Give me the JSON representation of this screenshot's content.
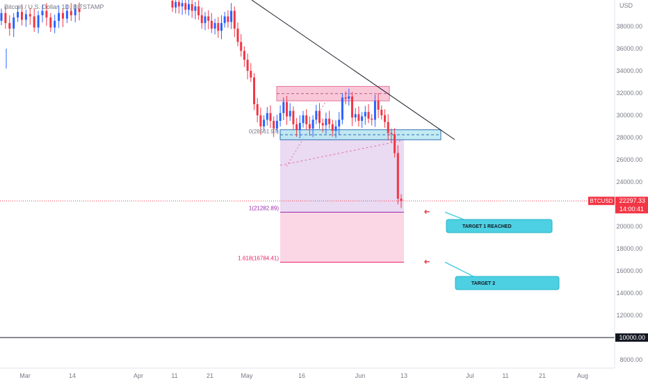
{
  "title": "Bitcoin / U.S. Dollar, 1D, BITSTAMP",
  "currency_label": "USD",
  "colors": {
    "up": "#2962ff",
    "down": "#f23645",
    "trendline": "#131722",
    "purple_zone": "#e6d3f0",
    "pink_zone": "#fbd3e2",
    "resistance_box": "#f5b6cc",
    "support_box": "#b8e8f2",
    "callout": "#4dd0e1",
    "price_tag": "#f23645"
  },
  "price_tag": {
    "symbol": "BTCUSD",
    "price": "22297.33",
    "countdown": "14:00:41"
  },
  "level_10000": "10000.00",
  "fib_labels": {
    "zero": "0(28561.97)",
    "one": "1(21282.89)",
    "ext": "1.618(16784.41)"
  },
  "callouts": [
    {
      "text": "TARGET 1 REACHED",
      "price": 20000
    },
    {
      "text": "TARGET 2",
      "price": 15000
    }
  ],
  "chart_data": {
    "type": "candlestick",
    "title": "Bitcoin / U.S. Dollar, 1D, BITSTAMP",
    "ylabel": "USD",
    "y_scale": "linear",
    "ylim": [
      7500,
      40500
    ],
    "y_ticks": [
      "38000.00",
      "36000.00",
      "34000.00",
      "32000.00",
      "30000.00",
      "28000.00",
      "26000.00",
      "24000.00",
      "22000.00",
      "20000.00",
      "18000.00",
      "16000.00",
      "14000.00",
      "12000.00",
      "10000.00",
      "8000.00"
    ],
    "x_ticks": [
      "Mar",
      "14",
      "Apr",
      "11",
      "21",
      "May",
      "16",
      "Jun",
      "13",
      "Jul",
      "11",
      "21",
      "Aug"
    ],
    "grid": false,
    "current_price": 22297.33,
    "horizontal_level": 10000,
    "fib_levels": [
      {
        "ratio": "0",
        "price": 28561.97
      },
      {
        "ratio": "1",
        "price": 21282.89
      },
      {
        "ratio": "1.618",
        "price": 16784.41
      }
    ],
    "zones": [
      {
        "name": "resistance",
        "low": 31300,
        "high": 32600
      },
      {
        "name": "support",
        "low": 27800,
        "high": 28700
      }
    ],
    "candles_open_close": [
      [
        38500,
        39200
      ],
      [
        39200,
        38300
      ],
      [
        38300,
        37800
      ],
      [
        37800,
        38800
      ],
      [
        38800,
        39300
      ],
      [
        39300,
        38600
      ],
      [
        38600,
        39100
      ],
      [
        39100,
        38900
      ],
      [
        38900,
        37900
      ],
      [
        37900,
        39000
      ],
      [
        39000,
        39400
      ],
      [
        39400,
        38800
      ],
      [
        38800,
        37900
      ],
      [
        37900,
        38500
      ],
      [
        38500,
        39200
      ],
      [
        39200,
        38700
      ],
      [
        38700,
        39400
      ],
      [
        39400,
        39000
      ],
      [
        39000,
        39600
      ],
      [
        39600,
        39300
      ],
      [
        40300,
        39700
      ],
      [
        39700,
        40200
      ],
      [
        40200,
        39800
      ],
      [
        39800,
        40100
      ],
      [
        40100,
        39500
      ],
      [
        39500,
        40000
      ],
      [
        40000,
        39400
      ],
      [
        39400,
        39800
      ],
      [
        39800,
        39000
      ],
      [
        39000,
        38300
      ],
      [
        38300,
        38900
      ],
      [
        38900,
        38500
      ],
      [
        38500,
        37800
      ],
      [
        37800,
        38300
      ],
      [
        38300,
        37600
      ],
      [
        37600,
        38300
      ],
      [
        38300,
        38900
      ],
      [
        38900,
        38400
      ],
      [
        38400,
        39400
      ],
      [
        39400,
        37800
      ],
      [
        37800,
        36600
      ],
      [
        36600,
        35800
      ],
      [
        35800,
        35000
      ],
      [
        35000,
        34000
      ],
      [
        34000,
        33400
      ],
      [
        33400,
        31000
      ],
      [
        31000,
        30000
      ],
      [
        30000,
        29000
      ],
      [
        29000,
        29600
      ],
      [
        29600,
        30200
      ],
      [
        30200,
        29500
      ],
      [
        29500,
        28800
      ],
      [
        28800,
        29500
      ],
      [
        29500,
        30200
      ],
      [
        30200,
        31200
      ],
      [
        31200,
        29900
      ],
      [
        29900,
        30400
      ],
      [
        30400,
        29200
      ],
      [
        29200,
        28700
      ],
      [
        28700,
        29300
      ],
      [
        29300,
        30000
      ],
      [
        30000,
        29200
      ],
      [
        29200,
        28800
      ],
      [
        28800,
        29600
      ],
      [
        29600,
        30400
      ],
      [
        30400,
        29300
      ],
      [
        29300,
        29100
      ],
      [
        29100,
        29700
      ],
      [
        29700,
        29200
      ],
      [
        29200,
        28600
      ],
      [
        28600,
        29000
      ],
      [
        29000,
        29600
      ],
      [
        29600,
        31600
      ],
      [
        31600,
        31500
      ],
      [
        31500,
        31700
      ],
      [
        31700,
        29800
      ],
      [
        29800,
        30100
      ],
      [
        30100,
        29500
      ],
      [
        29500,
        29900
      ],
      [
        29900,
        30300
      ],
      [
        30300,
        29700
      ],
      [
        29700,
        29600
      ],
      [
        29600,
        31300
      ],
      [
        31300,
        30500
      ],
      [
        30500,
        30000
      ],
      [
        30000,
        29400
      ],
      [
        29400,
        28400
      ],
      [
        28400,
        28300
      ],
      [
        28300,
        26600
      ],
      [
        26600,
        22500
      ],
      [
        22500,
        22300
      ]
    ]
  }
}
